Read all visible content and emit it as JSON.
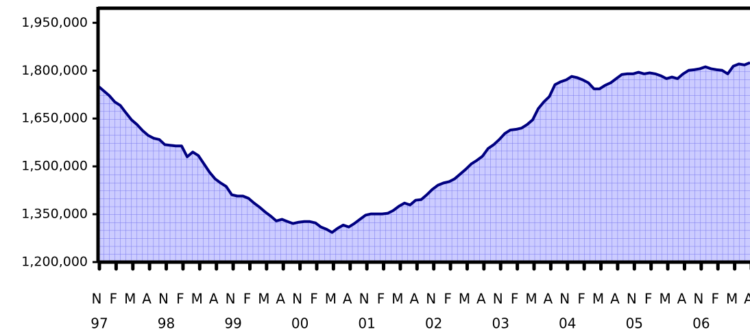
{
  "chart_data": {
    "type": "area",
    "categories": [
      "N",
      null,
      null,
      "F",
      null,
      null,
      "M",
      null,
      null,
      "A",
      null,
      null,
      "N",
      null,
      null,
      "F",
      null,
      null,
      "M",
      null,
      null,
      "A",
      null,
      null,
      "N",
      null,
      null,
      "F",
      null,
      null,
      "M",
      null,
      null,
      "A",
      null,
      null,
      "N",
      null,
      null,
      "F",
      null,
      null,
      "M",
      null,
      null,
      "A",
      null,
      null,
      "N",
      null,
      null,
      "F",
      null,
      null,
      "M",
      null,
      null,
      "A",
      null,
      null,
      "N",
      null,
      null,
      "F",
      null,
      null,
      "M",
      null,
      null,
      "A",
      null,
      null,
      "N",
      null,
      null,
      "F",
      null,
      null,
      "M",
      null,
      null,
      "A",
      null,
      null,
      "N",
      null,
      null,
      "F",
      null,
      null,
      "M",
      null,
      null,
      "A",
      null,
      null,
      "N",
      null,
      null,
      "F",
      null,
      null,
      "M",
      null,
      null,
      "A",
      null,
      null,
      "N",
      null,
      null,
      "F",
      null,
      null,
      "M",
      null,
      null,
      "A"
    ],
    "years": [
      "97",
      "98",
      "99",
      "00",
      "01",
      "02",
      "03",
      "04",
      "05",
      "06"
    ],
    "values": [
      1752000,
      1737000,
      1722000,
      1702000,
      1691000,
      1668000,
      1646000,
      1631000,
      1612000,
      1597000,
      1588000,
      1584000,
      1568000,
      1566000,
      1564000,
      1564000,
      1530000,
      1545000,
      1534000,
      1508000,
      1482000,
      1461000,
      1448000,
      1437000,
      1411000,
      1407000,
      1407000,
      1400000,
      1385000,
      1372000,
      1357000,
      1344000,
      1329000,
      1334000,
      1327000,
      1321000,
      1325000,
      1327000,
      1327000,
      1323000,
      1310000,
      1303000,
      1293000,
      1306000,
      1316000,
      1310000,
      1321000,
      1334000,
      1347000,
      1351000,
      1351000,
      1351000,
      1353000,
      1362000,
      1375000,
      1385000,
      1379000,
      1394000,
      1396000,
      1411000,
      1428000,
      1441000,
      1448000,
      1452000,
      1461000,
      1476000,
      1491000,
      1508000,
      1519000,
      1532000,
      1556000,
      1568000,
      1584000,
      1603000,
      1614000,
      1616000,
      1620000,
      1631000,
      1646000,
      1681000,
      1702000,
      1719000,
      1756000,
      1765000,
      1771000,
      1782000,
      1778000,
      1771000,
      1762000,
      1743000,
      1743000,
      1754000,
      1762000,
      1775000,
      1788000,
      1790000,
      1790000,
      1795000,
      1790000,
      1793000,
      1790000,
      1784000,
      1775000,
      1780000,
      1775000,
      1790000,
      1801000,
      1803000,
      1806000,
      1812000,
      1806000,
      1803000,
      1801000,
      1790000,
      1814000,
      1821000,
      1818000,
      1825000
    ],
    "color": "#000080",
    "fill": "#ccccff",
    "ylim": [
      1200000,
      2000000
    ],
    "yticks": [
      {
        "value": 1200000,
        "label": "1,200,000"
      },
      {
        "value": 1350000,
        "label": "1,350,000"
      },
      {
        "value": 1500000,
        "label": "1,500,000"
      },
      {
        "value": 1650000,
        "label": "1,650,000"
      },
      {
        "value": 1800000,
        "label": "1,800,000"
      },
      {
        "value": 1950000,
        "label": "1,950,000"
      }
    ]
  }
}
